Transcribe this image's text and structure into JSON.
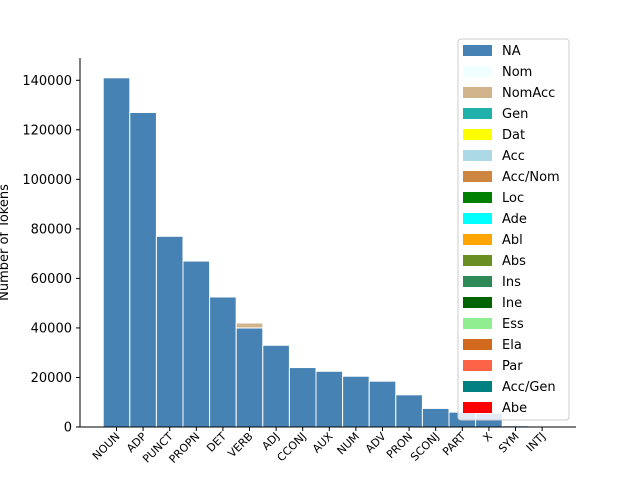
{
  "chart_data": {
    "type": "bar",
    "stacked": true,
    "ylabel": "Number of Tokens",
    "xlabel": "",
    "title": "",
    "ylim": [
      0,
      149000
    ],
    "yticks": [
      0,
      20000,
      40000,
      60000,
      80000,
      100000,
      120000,
      140000
    ],
    "categories": [
      "NOUN",
      "ADP",
      "PUNCT",
      "PROPN",
      "DET",
      "VERB",
      "ADJ",
      "CCONJ",
      "AUX",
      "NUM",
      "ADV",
      "PRON",
      "SCONJ",
      "PART",
      "X",
      "SYM",
      "INTJ"
    ],
    "series": [
      {
        "name": "NA",
        "color": "#4682b4",
        "values": [
          141000,
          127000,
          77000,
          67000,
          52500,
          40000,
          33000,
          24000,
          22500,
          20500,
          18500,
          13000,
          7500,
          6000,
          5500,
          500,
          300
        ]
      },
      {
        "name": "Nom",
        "color": "#f0ffff",
        "values": [
          0,
          0,
          0,
          0,
          0,
          0,
          0,
          0,
          0,
          0,
          0,
          0,
          0,
          0,
          0,
          0,
          0
        ]
      },
      {
        "name": "NomAcc",
        "color": "#d2b48c",
        "values": [
          0,
          0,
          0,
          0,
          0,
          2000,
          0,
          0,
          0,
          0,
          0,
          0,
          0,
          0,
          0,
          0,
          0
        ]
      },
      {
        "name": "Gen",
        "color": "#20b2aa",
        "values": [
          0,
          0,
          0,
          0,
          0,
          0,
          0,
          0,
          0,
          0,
          0,
          0,
          0,
          0,
          0,
          0,
          0
        ]
      },
      {
        "name": "Dat",
        "color": "#ffff00",
        "values": [
          0,
          0,
          0,
          0,
          0,
          0,
          0,
          0,
          0,
          0,
          0,
          0,
          0,
          0,
          0,
          0,
          0
        ]
      },
      {
        "name": "Acc",
        "color": "#add8e6",
        "values": [
          0,
          0,
          0,
          0,
          0,
          0,
          0,
          0,
          0,
          0,
          0,
          0,
          0,
          0,
          0,
          0,
          0
        ]
      },
      {
        "name": "Acc/Nom",
        "color": "#cd853f",
        "values": [
          0,
          0,
          0,
          0,
          0,
          0,
          0,
          0,
          0,
          0,
          0,
          0,
          0,
          0,
          0,
          0,
          0
        ]
      },
      {
        "name": "Loc",
        "color": "#008000",
        "values": [
          0,
          0,
          0,
          0,
          0,
          0,
          0,
          0,
          0,
          0,
          0,
          0,
          0,
          0,
          0,
          0,
          0
        ]
      },
      {
        "name": "Ade",
        "color": "#00ffff",
        "values": [
          0,
          0,
          0,
          0,
          0,
          0,
          0,
          0,
          0,
          0,
          0,
          0,
          0,
          0,
          0,
          0,
          0
        ]
      },
      {
        "name": "Abl",
        "color": "#ffa500",
        "values": [
          0,
          0,
          0,
          0,
          0,
          0,
          0,
          0,
          0,
          0,
          0,
          0,
          0,
          0,
          0,
          0,
          0
        ]
      },
      {
        "name": "Abs",
        "color": "#6b8e23",
        "values": [
          0,
          0,
          0,
          0,
          0,
          0,
          0,
          0,
          0,
          0,
          0,
          0,
          0,
          0,
          0,
          0,
          0
        ]
      },
      {
        "name": "Ins",
        "color": "#2e8b57",
        "values": [
          0,
          0,
          0,
          0,
          0,
          0,
          0,
          0,
          0,
          0,
          0,
          0,
          0,
          0,
          0,
          0,
          0
        ]
      },
      {
        "name": "Ine",
        "color": "#006400",
        "values": [
          0,
          0,
          0,
          0,
          0,
          0,
          0,
          0,
          0,
          0,
          0,
          0,
          0,
          0,
          0,
          0,
          0
        ]
      },
      {
        "name": "Ess",
        "color": "#90ee90",
        "values": [
          0,
          0,
          0,
          0,
          0,
          0,
          0,
          0,
          0,
          0,
          0,
          0,
          0,
          0,
          0,
          0,
          0
        ]
      },
      {
        "name": "Ela",
        "color": "#d2691e",
        "values": [
          0,
          0,
          0,
          0,
          0,
          0,
          0,
          0,
          0,
          0,
          0,
          0,
          0,
          0,
          0,
          0,
          0
        ]
      },
      {
        "name": "Par",
        "color": "#ff6347",
        "values": [
          0,
          0,
          0,
          0,
          0,
          0,
          0,
          0,
          0,
          0,
          0,
          0,
          0,
          0,
          0,
          0,
          0
        ]
      },
      {
        "name": "Acc/Gen",
        "color": "#008080",
        "values": [
          0,
          0,
          0,
          0,
          0,
          0,
          0,
          0,
          0,
          0,
          0,
          0,
          0,
          0,
          0,
          0,
          0
        ]
      },
      {
        "name": "Abe",
        "color": "#ff0000",
        "values": [
          0,
          0,
          0,
          0,
          0,
          0,
          0,
          0,
          0,
          0,
          0,
          0,
          0,
          0,
          0,
          0,
          0
        ]
      }
    ],
    "legend_position": "upper-right",
    "grid": false,
    "colors": {
      "bar_edge": "#ffffff",
      "axis": "#000000",
      "text": "#000000"
    }
  }
}
